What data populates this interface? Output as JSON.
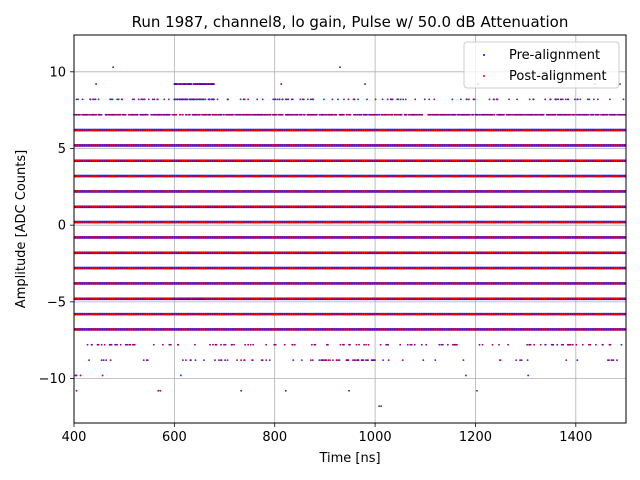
{
  "chart_data": {
    "type": "scatter",
    "title": "Run 1987, channel8, lo gain, Pulse w/ 50.0 dB Attenuation",
    "xlabel": "Time [ns]",
    "ylabel": "Amplitude [ADC Counts]",
    "xlim": [
      400,
      1500
    ],
    "ylim": [
      -12.9,
      12.4
    ],
    "xticks": [
      400,
      600,
      800,
      1000,
      1200,
      1400
    ],
    "yticks": [
      -10,
      -5,
      0,
      5,
      10
    ],
    "xtick_labels": [
      "400",
      "600",
      "800",
      "1000",
      "1200",
      "1400"
    ],
    "ytick_labels": [
      "−10",
      "−5",
      "0",
      "5",
      "10"
    ],
    "grid": true,
    "legend_position": "top-right",
    "sample_period_ns": 1.0,
    "dense_levels": [
      -6.8,
      -5.8,
      -4.8,
      -3.8,
      -2.8,
      -1.8,
      -0.8,
      0.2,
      1.2,
      2.2,
      3.2,
      4.2,
      5.2,
      6.2
    ],
    "sparse_levels": [
      {
        "value": 7.2,
        "density": 0.55,
        "clusters": []
      },
      {
        "value": 8.2,
        "density": 0.12,
        "clusters": [
          [
            600,
            680,
            0.6
          ]
        ]
      },
      {
        "value": 9.2,
        "density": 0.008,
        "clusters": [
          [
            600,
            680,
            0.7
          ]
        ]
      },
      {
        "value": 10.3,
        "density": 0.0,
        "clusters": [],
        "points": [
          478,
          930
        ]
      },
      {
        "value": -4.8,
        "density": 0.0,
        "clusters": [
          [
            600,
            660,
            0.4
          ]
        ]
      },
      {
        "value": -7.8,
        "density": 0.13,
        "clusters": []
      },
      {
        "value": -8.8,
        "density": 0.05,
        "clusters": [
          [
            880,
            1000,
            0.35
          ]
        ]
      },
      {
        "value": -9.8,
        "density": 0.008,
        "clusters": []
      },
      {
        "value": -10.8,
        "density": 0.0,
        "clusters": [],
        "points": [
          405,
          568,
          572,
          733,
          822,
          948,
          1203
        ]
      },
      {
        "value": -11.8,
        "density": 0.0,
        "clusters": [],
        "points": [
          1008,
          1012
        ]
      }
    ],
    "series": [
      {
        "name": "Pre-alignment",
        "color": "#0000ff",
        "marker": "dot"
      },
      {
        "name": "Post-alignment",
        "color": "#ff0000",
        "marker": "dot"
      }
    ]
  }
}
